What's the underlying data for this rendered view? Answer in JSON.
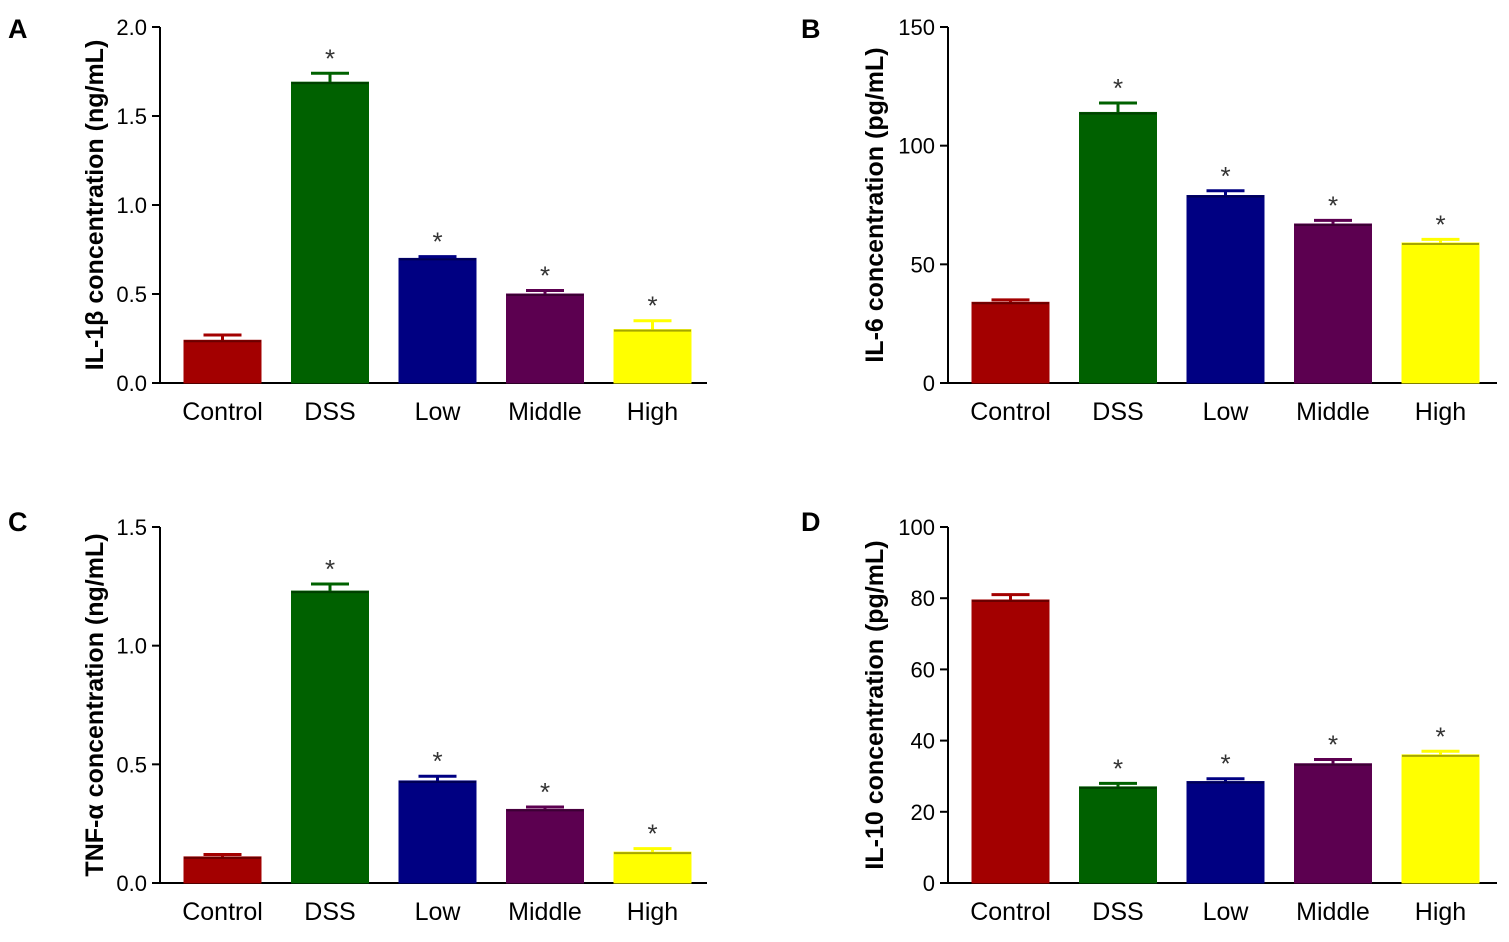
{
  "categories": [
    "Control",
    "DSS",
    "Low",
    "Middle",
    "High"
  ],
  "colors": {
    "Control": "#a30000",
    "DSS": "#006100",
    "Low": "#000082",
    "Middle": "#5c0050",
    "High": "#ffff00"
  },
  "chart_data": [
    {
      "type": "bar",
      "panel": "A",
      "ylabel": "IL-1β concentration (ng/mL)",
      "ylim": [
        0,
        2.0
      ],
      "ticks": [
        "0.0",
        "0.5",
        "1.0",
        "1.5",
        "2.0"
      ],
      "categories": [
        "Control",
        "DSS",
        "Low",
        "Middle",
        "High"
      ],
      "values": [
        0.24,
        1.69,
        0.7,
        0.5,
        0.3
      ],
      "errors": [
        0.03,
        0.05,
        0.01,
        0.02,
        0.05
      ],
      "significance": [
        "",
        "*",
        "*",
        "*",
        "*"
      ]
    },
    {
      "type": "bar",
      "panel": "B",
      "ylabel": "IL-6 concentration (pg/mL)",
      "ylim": [
        0,
        150
      ],
      "ticks": [
        "0",
        "50",
        "100",
        "150"
      ],
      "categories": [
        "Control",
        "DSS",
        "Low",
        "Middle",
        "High"
      ],
      "values": [
        34,
        114,
        79,
        67,
        59
      ],
      "errors": [
        1,
        4,
        2,
        1.5,
        1.5
      ],
      "significance": [
        "",
        "*",
        "*",
        "*",
        "*"
      ]
    },
    {
      "type": "bar",
      "panel": "C",
      "ylabel": "TNF-α concentration (ng/mL)",
      "ylim": [
        0,
        1.5
      ],
      "ticks": [
        "0.0",
        "0.5",
        "1.0",
        "1.5"
      ],
      "categories": [
        "Control",
        "DSS",
        "Low",
        "Middle",
        "High"
      ],
      "values": [
        0.11,
        1.23,
        0.43,
        0.31,
        0.13
      ],
      "errors": [
        0.01,
        0.03,
        0.02,
        0.01,
        0.015
      ],
      "significance": [
        "",
        "*",
        "*",
        "*",
        "*"
      ]
    },
    {
      "type": "bar",
      "panel": "D",
      "ylabel": "IL-10 concentration (pg/mL)",
      "ylim": [
        0,
        100
      ],
      "ticks": [
        "0",
        "20",
        "40",
        "60",
        "80",
        "100"
      ],
      "categories": [
        "Control",
        "DSS",
        "Low",
        "Middle",
        "High"
      ],
      "values": [
        79.5,
        27,
        28.5,
        33.5,
        36
      ],
      "errors": [
        1.5,
        1,
        0.8,
        1.2,
        1
      ],
      "significance": [
        "",
        "*",
        "*",
        "*",
        "*"
      ]
    }
  ]
}
